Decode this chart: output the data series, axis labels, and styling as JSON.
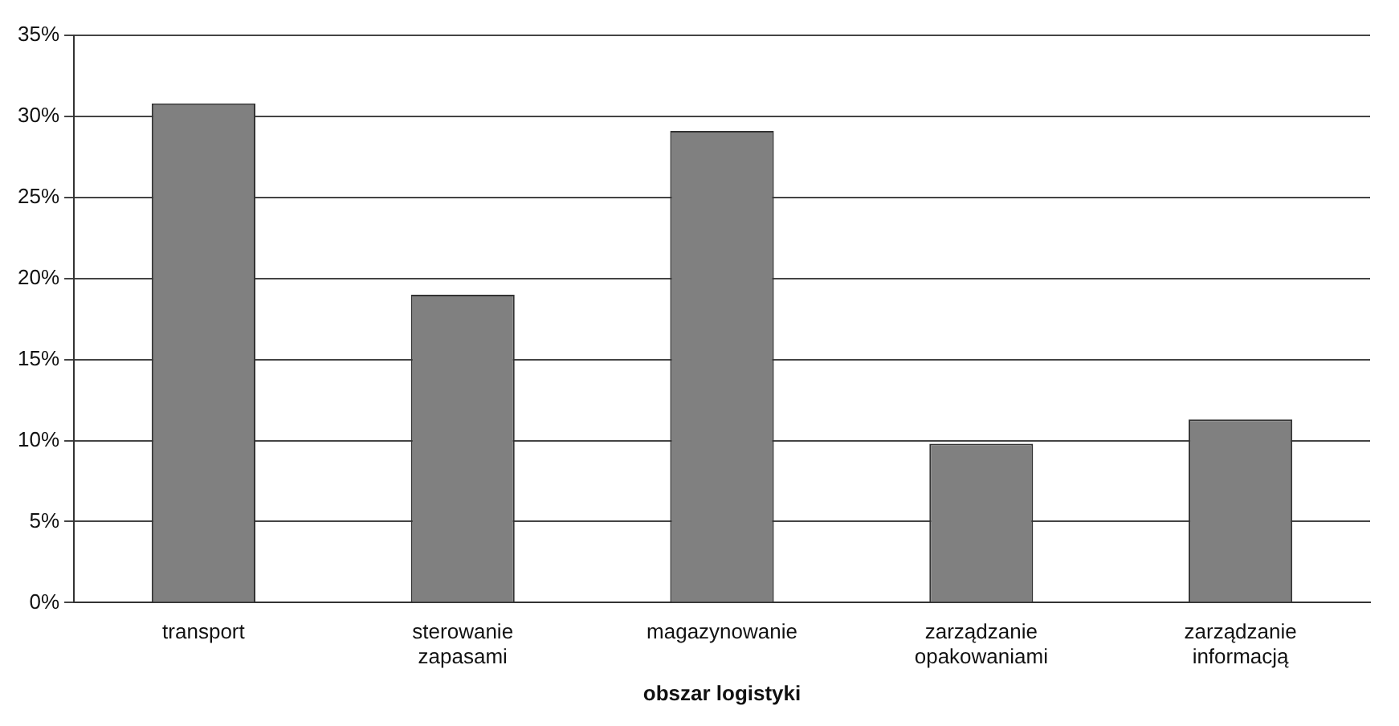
{
  "chart_data": {
    "type": "bar",
    "xlabel": "obszar logistyki",
    "categories": [
      "transport",
      "sterowanie zapasami",
      "magazynowanie",
      "zarządzanie opakowaniami",
      "zarządzanie informacją"
    ],
    "values": [
      30.8,
      19.0,
      29.1,
      9.8,
      11.3
    ],
    "color": "#808080",
    "ylim": [
      0,
      35
    ],
    "yticks": [
      {
        "value": 0,
        "label": "0%"
      },
      {
        "value": 5,
        "label": "5%"
      },
      {
        "value": 10,
        "label": "10%"
      },
      {
        "value": 15,
        "label": "15%"
      },
      {
        "value": 20,
        "label": "20%"
      },
      {
        "value": 25,
        "label": "25%"
      },
      {
        "value": 30,
        "label": "30%"
      },
      {
        "value": 35,
        "label": "35%"
      }
    ],
    "grid": "y",
    "legend": false
  }
}
